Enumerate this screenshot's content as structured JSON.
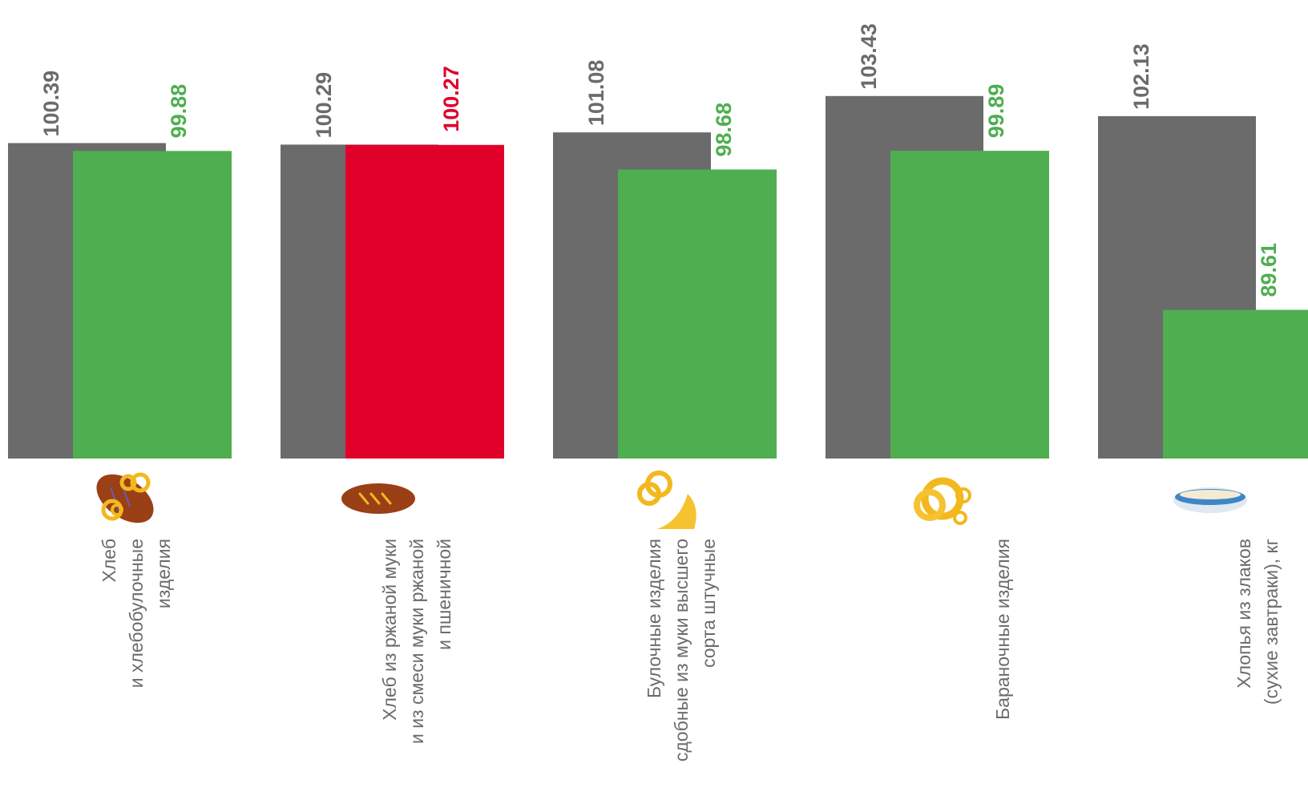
{
  "colors": {
    "gray": "#6b6b6b",
    "green": "#4fae50",
    "red": "#e0002a",
    "gray_label": "#6b6b6b",
    "green_label": "#4fae50",
    "red_label": "#e0002a"
  },
  "chart_data": {
    "type": "bar",
    "title": "",
    "xlabel": "",
    "ylabel": "",
    "ylim": [
      80,
      104
    ],
    "grid": false,
    "legend": "none",
    "categories": [
      {
        "lines": [
          "Хлеб",
          "и хлебобулочные",
          "изделия"
        ],
        "icon": "bread-and-pretzels-icon"
      },
      {
        "lines": [
          "Хлеб из ржаной муки",
          "и из смеси муки ржаной",
          "и пшеничной"
        ],
        "icon": "rye-loaf-icon"
      },
      {
        "lines": [
          "Булочные изделия",
          "сдобные из муки высшего",
          "сорта штучные"
        ],
        "icon": "pretzel-croissant-icon"
      },
      {
        "lines": [
          "Бараночные изделия"
        ],
        "icon": "bagel-rings-icon"
      },
      {
        "lines": [
          "Хлопья из злаков",
          "(сухие завтраки), кг"
        ],
        "icon": "cereal-bowl-icon"
      }
    ],
    "series": [
      {
        "values": [
          100.39,
          100.29,
          101.08,
          103.43,
          102.13
        ],
        "labels": [
          "100.39",
          "100.29",
          "101.08",
          "103.43",
          "102.13"
        ],
        "colors": [
          "gray",
          "gray",
          "gray",
          "gray",
          "gray"
        ]
      },
      {
        "values": [
          99.88,
          100.27,
          98.68,
          99.89,
          89.61
        ],
        "labels": [
          "99.88",
          "100.27",
          "98.68",
          "99.89",
          "89.61"
        ],
        "colors": [
          "green",
          "red",
          "green",
          "green",
          "green"
        ]
      }
    ]
  }
}
